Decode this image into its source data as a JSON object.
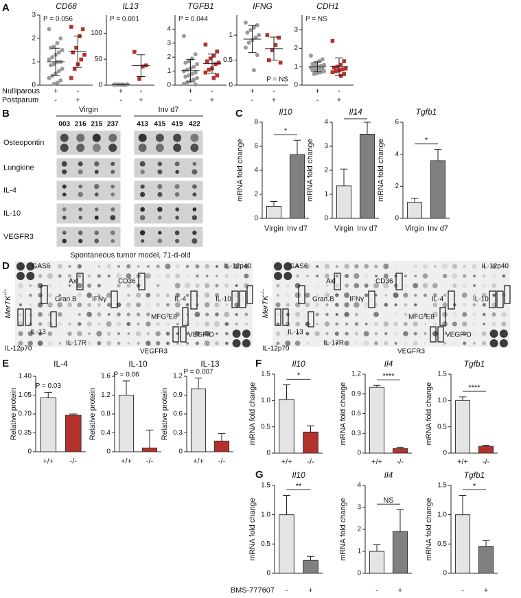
{
  "panel_letters": [
    "A",
    "B",
    "C",
    "D",
    "E",
    "F",
    "G"
  ],
  "conditions_a": [
    {
      "label": "Nulliparous",
      "signs": [
        "+",
        "-"
      ]
    },
    {
      "label": "Postparum",
      "signs": [
        "-",
        "+"
      ]
    }
  ],
  "blot_b": {
    "groups": [
      {
        "label": "Virgin",
        "samples": [
          "003",
          "216",
          "215",
          "237"
        ]
      },
      {
        "label": "Inv d7",
        "samples": [
          "413",
          "415",
          "419",
          "422"
        ]
      }
    ],
    "rows": [
      "Osteopontin",
      "Lungkine",
      "IL-4",
      "IL-10",
      "VEGFR3"
    ],
    "caption": "Spontaneous tumor model, 71-d-old"
  },
  "blot_d": {
    "arrays": [
      {
        "label": "MerTK",
        "genotype": "+/+"
      },
      {
        "label": "MerTK",
        "genotype": "–/–"
      }
    ],
    "spots": [
      "GAS6",
      "Axl",
      "CD36",
      "IL-12p40",
      "Gran.B",
      "IFNγ",
      "IL-4",
      "IL-10",
      "IL-12p70",
      "IL-13",
      "IL-17R",
      "MFG-E8",
      "VEGF-D",
      "VEGFR3"
    ]
  },
  "treatment_g": "BMS-777607",
  "chart_data": [
    {
      "type": "dotplot",
      "title": "CD68",
      "annotation": "P = 0.056",
      "annotation_position": "top",
      "ylim": [
        0,
        3
      ],
      "yticks": [
        0,
        1,
        2,
        3
      ],
      "groups": [
        {
          "color": "#9a9a9a",
          "marker": "circle",
          "values": [
            2.4,
            2.0,
            1.8,
            1.65,
            1.6,
            1.5,
            1.4,
            1.3,
            1.2,
            1.1,
            1.0,
            1.0,
            0.9,
            0.85,
            0.7,
            0.6,
            0.5,
            0.4,
            0.3,
            0.2,
            0.1,
            0.05
          ],
          "mean": 1.0,
          "sd": 0.58
        },
        {
          "color": "#b5312c",
          "marker": "square",
          "values": [
            2.5,
            2.4,
            2.1,
            1.6,
            1.4,
            1.3,
            1.1,
            0.9,
            0.7,
            0.3
          ],
          "mean": 1.43,
          "sd": 0.67
        }
      ]
    },
    {
      "type": "dotplot",
      "title": "IL13",
      "annotation": "P = 0.001",
      "annotation_position": "top",
      "ylim": [
        0,
        135
      ],
      "yticks": [
        0,
        50,
        100
      ],
      "groups": [
        {
          "color": "#9a9a9a",
          "marker": "circle",
          "values": [
            0.2,
            0.5,
            0.8,
            1.0,
            1.2,
            1.5,
            0.3,
            0.6,
            0.9,
            1.1,
            0.4,
            1.3
          ],
          "mean": 0.82,
          "sd": 0.4
        },
        {
          "color": "#b5312c",
          "marker": "square",
          "values": [
            64,
            38,
            36,
            12
          ],
          "mean": 37.5,
          "sd": 21
        }
      ]
    },
    {
      "type": "dotplot",
      "title": "TGFB1",
      "annotation": "P = 0.044",
      "annotation_position": "top",
      "ylim": [
        0,
        5
      ],
      "yticks": [
        0,
        1,
        2,
        3,
        4
      ],
      "groups": [
        {
          "color": "#9a9a9a",
          "marker": "circle",
          "values": [
            3.5,
            2.2,
            1.9,
            1.7,
            1.6,
            1.5,
            1.3,
            1.2,
            1.1,
            1.0,
            0.9,
            0.8,
            0.7,
            0.6,
            0.5,
            0.4,
            0.3,
            0.2,
            0.1,
            0.05
          ],
          "mean": 1.04,
          "sd": 0.8
        },
        {
          "color": "#b5312c",
          "marker": "square",
          "values": [
            2.9,
            2.4,
            2.1,
            1.9,
            1.7,
            1.6,
            1.5,
            1.2,
            1.1,
            0.9,
            0.7,
            0.5
          ],
          "mean": 1.54,
          "sd": 0.68
        }
      ]
    },
    {
      "type": "dotplot",
      "title": "IFNG",
      "annotation": "P = NS",
      "annotation_position": "bottom",
      "ylim": [
        0,
        1.4
      ],
      "yticks": [
        0,
        0.5,
        1
      ],
      "groups": [
        {
          "color": "#9a9a9a",
          "marker": "circle",
          "values": [
            1.25,
            1.2,
            1.15,
            1.1,
            1.05,
            1.0,
            0.95,
            0.9,
            0.85,
            0.75,
            0.6,
            0.3
          ],
          "mean": 0.92,
          "sd": 0.27
        },
        {
          "color": "#b5312c",
          "marker": "square",
          "values": [
            1.0,
            0.95,
            0.8,
            0.7,
            0.5,
            0.45
          ],
          "mean": 0.73,
          "sd": 0.23
        }
      ]
    },
    {
      "type": "dotplot",
      "title": "CDH1",
      "annotation": "P = NS",
      "annotation_position": "top",
      "ylim": [
        0,
        3.8
      ],
      "yticks": [
        0,
        1,
        2,
        3
      ],
      "groups": [
        {
          "color": "#9a9a9a",
          "marker": "circle",
          "values": [
            1.6,
            1.4,
            1.3,
            1.2,
            1.15,
            1.1,
            1.05,
            1.0,
            1.0,
            0.95,
            0.9,
            0.9,
            0.85,
            0.8,
            0.75,
            0.7,
            0.65,
            0.6
          ],
          "mean": 0.99,
          "sd": 0.27
        },
        {
          "color": "#b5312c",
          "marker": "square",
          "values": [
            2.4,
            1.3,
            1.1,
            1.0,
            0.95,
            0.9,
            0.85,
            0.8,
            0.75,
            0.7,
            0.6,
            0.5
          ],
          "mean": 1.01,
          "sd": 0.47
        }
      ]
    },
    {
      "type": "bar",
      "title": "Il10",
      "ylabel": "mRNA fold change",
      "categories": [
        "Virgin",
        "Inv d7"
      ],
      "values": [
        1.0,
        5.3
      ],
      "errors": [
        0.4,
        1.2
      ],
      "colors": [
        "#e4e4e4",
        "#808080"
      ],
      "ylim": [
        0,
        8
      ],
      "yticks": [
        0,
        2,
        4,
        6,
        8
      ],
      "significance": "*"
    },
    {
      "type": "bar",
      "title": "Il14",
      "ylabel": "mRNA fold change",
      "categories": [
        "Virgin",
        "Inv d7"
      ],
      "values": [
        1.35,
        3.5
      ],
      "errors": [
        0.7,
        0.5
      ],
      "colors": [
        "#e4e4e4",
        "#808080"
      ],
      "ylim": [
        0,
        4
      ],
      "yticks": [
        0,
        1,
        2,
        3,
        4
      ],
      "significance": "*"
    },
    {
      "type": "bar",
      "title": "Tgfb1",
      "ylabel": "mRNA fold change",
      "categories": [
        "Virgin",
        "Inv d7"
      ],
      "values": [
        1.0,
        3.6
      ],
      "errors": [
        0.25,
        0.7
      ],
      "colors": [
        "#e4e4e4",
        "#808080"
      ],
      "ylim": [
        0,
        6
      ],
      "yticks": [
        0,
        2,
        4,
        6
      ],
      "significance": "*"
    },
    {
      "type": "bar",
      "title": "IL-4",
      "ylabel": "Relative protein",
      "categories": [
        "+/+",
        "-/-"
      ],
      "values": [
        1.0,
        0.68
      ],
      "errors": [
        0.1,
        0.02
      ],
      "colors": [
        "#e4e4e4",
        "#b5312c"
      ],
      "ylim": [
        0,
        1.4
      ],
      "yticks": [
        0,
        0.35,
        {
          "value": 0.7,
          "label": "0.70"
        },
        1.05,
        {
          "value": 1.4,
          "label": "1.40"
        }
      ],
      "annotation": "P = 0.03"
    },
    {
      "type": "bar",
      "title": "IL-10",
      "ylabel": "Relative protein",
      "categories": [
        "+/+",
        "-/-"
      ],
      "values": [
        1.2,
        0.08
      ],
      "errors": [
        0.3,
        0.38
      ],
      "colors": [
        "#e4e4e4",
        "#b5312c"
      ],
      "ylim": [
        0,
        1.6
      ],
      "yticks": [
        0,
        0.4,
        0.8,
        1.2,
        1.6
      ],
      "annotation": "P = 0.06"
    },
    {
      "type": "bar",
      "title": "IL-13",
      "ylabel": "Relative protein",
      "categories": [
        "+/+",
        "-/-"
      ],
      "values": [
        1.0,
        0.17
      ],
      "errors": [
        0.17,
        0.12
      ],
      "colors": [
        "#e4e4e4",
        "#b5312c"
      ],
      "ylim": [
        0,
        1.2
      ],
      "yticks": [
        0,
        0.3,
        0.6,
        0.9,
        1.2
      ],
      "annotation": "P = 0.007"
    },
    {
      "type": "bar",
      "title": "Il10",
      "ylabel": "mRNA fold change",
      "categories": [
        "+/+",
        "-/-"
      ],
      "values": [
        1.02,
        0.4
      ],
      "errors": [
        0.28,
        0.12
      ],
      "colors": [
        "#e4e4e4",
        "#b5312c"
      ],
      "ylim": [
        0,
        1.5
      ],
      "yticks": [
        0,
        0.5,
        {
          "value": 1,
          "label": "1.0"
        },
        1.5
      ],
      "significance": "*"
    },
    {
      "type": "bar",
      "title": "Il4",
      "ylabel": "mRNA fold change",
      "categories": [
        "+/+",
        "-/-"
      ],
      "values": [
        1.0,
        0.07
      ],
      "errors": [
        0.03,
        0.02
      ],
      "colors": [
        "#e4e4e4",
        "#b5312c"
      ],
      "ylim": [
        0,
        1.2
      ],
      "yticks": [
        0,
        0.3,
        0.6,
        0.9,
        1.2
      ],
      "significance": "****"
    },
    {
      "type": "bar",
      "title": "Tgfb1",
      "ylabel": "mRNA fold change",
      "categories": [
        "+/+",
        "-/-"
      ],
      "values": [
        1.0,
        0.13
      ],
      "errors": [
        0.07,
        0.02
      ],
      "colors": [
        "#e4e4e4",
        "#b5312c"
      ],
      "ylim": [
        0,
        1.5
      ],
      "yticks": [
        0,
        0.5,
        {
          "value": 1,
          "label": "1.0"
        },
        1.5
      ],
      "significance": "****"
    },
    {
      "type": "bar",
      "title": "Il10",
      "ylabel": "mRNA fold change",
      "categories": [
        "-",
        "+"
      ],
      "values": [
        1.0,
        0.22
      ],
      "errors": [
        0.33,
        0.07
      ],
      "colors": [
        "#e4e4e4",
        "#808080"
      ],
      "ylim": [
        0,
        1.5
      ],
      "yticks": [
        0,
        0.5,
        {
          "value": 1,
          "label": "1.0"
        },
        1.5
      ],
      "significance": "**"
    },
    {
      "type": "bar",
      "title": "Il4",
      "ylabel": "mRNA fold change",
      "categories": [
        "-",
        "+"
      ],
      "values": [
        1.0,
        1.9
      ],
      "errors": [
        0.3,
        1.0
      ],
      "colors": [
        "#e4e4e4",
        "#808080"
      ],
      "ylim": [
        0,
        4
      ],
      "yticks": [
        0,
        1,
        2,
        3,
        4
      ],
      "significance": "NS"
    },
    {
      "type": "bar",
      "title": "Tgfb1",
      "ylabel": "mRNA fold change",
      "categories": [
        "-",
        "+"
      ],
      "values": [
        1.0,
        0.46
      ],
      "errors": [
        0.33,
        0.1
      ],
      "colors": [
        "#e4e4e4",
        "#808080"
      ],
      "ylim": [
        0,
        1.5
      ],
      "yticks": [
        0,
        0.5,
        {
          "value": 1,
          "label": "1.0"
        },
        1.5
      ],
      "significance": "*"
    }
  ]
}
